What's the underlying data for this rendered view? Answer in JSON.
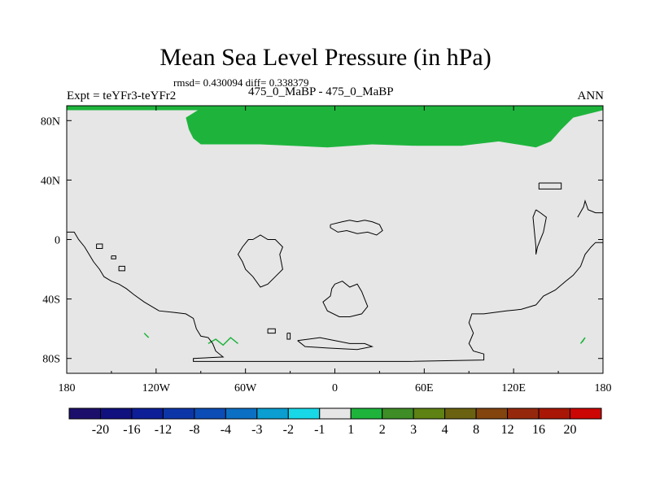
{
  "header": {
    "title": "Mean Sea Level Pressure (in hPa)",
    "stats": "rmsd= 0.430094 diff= 0.338379",
    "experiment": "Expt = teYFr3-teYFr2",
    "run": "475_0_MaBP - 475_0_MaBP",
    "season": "ANN"
  },
  "chart_data": {
    "type": "heatmap",
    "title": "Mean Sea Level Pressure (in hPa)",
    "xlim": [
      -180,
      180
    ],
    "ylim": [
      -90,
      90
    ],
    "x_ticks": [
      -180,
      -120,
      -60,
      0,
      60,
      120,
      180
    ],
    "x_tick_labels": [
      "180",
      "120W",
      "60W",
      "0",
      "60E",
      "120E",
      "180"
    ],
    "y_ticks": [
      80,
      40,
      0,
      -40,
      -80
    ],
    "y_tick_labels": [
      "80N",
      "40N",
      "0",
      "40S",
      "80S"
    ],
    "background_value_range": [
      -1,
      1
    ],
    "background_color": "#e6e6e6",
    "features": [
      {
        "label": "1 to 2 hPa",
        "color": "#1eb43c",
        "description": "Arctic anomaly band",
        "polygon": [
          [
            -180,
            90
          ],
          [
            180,
            90
          ],
          [
            180,
            87
          ],
          [
            160,
            82
          ],
          [
            152,
            74
          ],
          [
            145,
            66
          ],
          [
            135,
            62
          ],
          [
            110,
            66
          ],
          [
            85,
            63
          ],
          [
            55,
            63
          ],
          [
            25,
            64
          ],
          [
            -5,
            62
          ],
          [
            -50,
            64
          ],
          [
            -90,
            64
          ],
          [
            -95,
            68
          ],
          [
            -98,
            74
          ],
          [
            -100,
            82
          ],
          [
            -92,
            87
          ],
          [
            -180,
            87
          ]
        ]
      }
    ],
    "colorbar": {
      "labels": [
        "-20",
        "-16",
        "-12",
        "-8",
        "-4",
        "-3",
        "-2",
        "-1",
        "1",
        "2",
        "3",
        "4",
        "8",
        "12",
        "16",
        "20"
      ],
      "colors": [
        "#1c0f6c",
        "#10107f",
        "#0d1e97",
        "#0c36a8",
        "#0b4cb6",
        "#0b6fc4",
        "#0a9ed1",
        "#18d8e8",
        "#e6e6e6",
        "#1eb43c",
        "#3e8d26",
        "#5e8213",
        "#6b6211",
        "#83440e",
        "#95280c",
        "#a91606",
        "#cc0505"
      ]
    }
  }
}
